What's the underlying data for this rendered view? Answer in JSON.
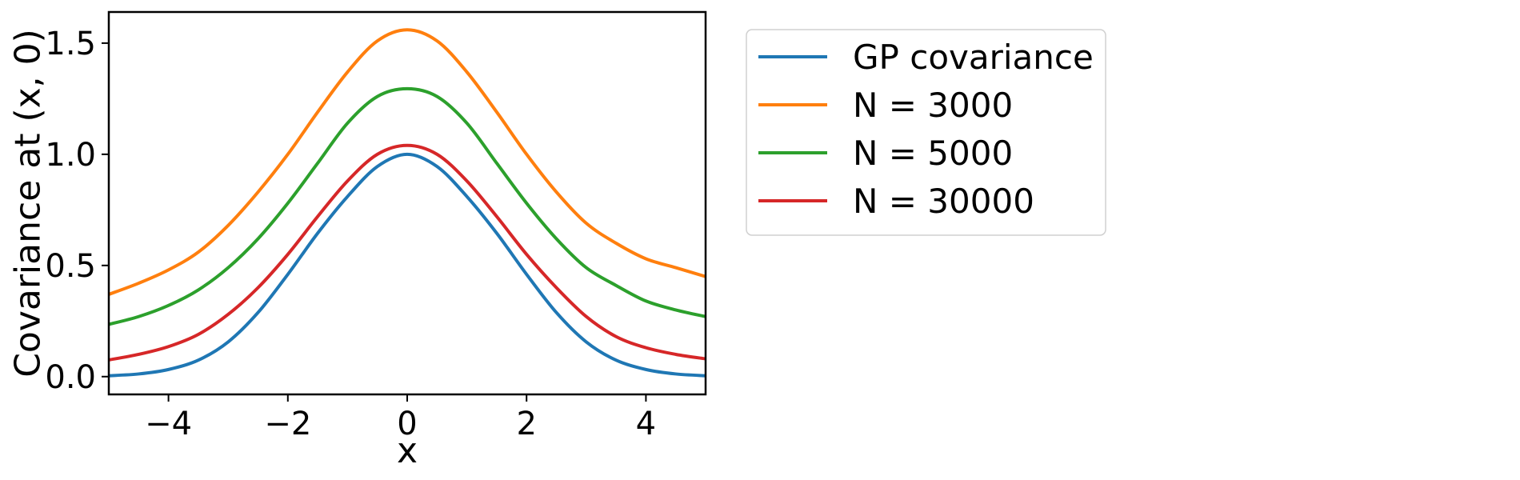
{
  "chart_data": {
    "type": "line",
    "xlabel": "x",
    "ylabel": "Covariance at (x, 0)",
    "xlim": [
      -5,
      5
    ],
    "ylim": [
      -0.08,
      1.64
    ],
    "x_ticks": [
      -4,
      -2,
      0,
      2,
      4
    ],
    "x_tick_labels": [
      "−4",
      "−2",
      "0",
      "2",
      "4"
    ],
    "y_ticks": [
      0.0,
      0.5,
      1.0,
      1.5
    ],
    "y_tick_labels": [
      "0.0",
      "0.5",
      "1.0",
      "1.5"
    ],
    "grid": false,
    "legend_position": "outside-right-top",
    "x": [
      -5,
      -4.5,
      -4,
      -3.5,
      -3,
      -2.5,
      -2,
      -1.5,
      -1,
      -0.5,
      0,
      0.5,
      1,
      1.5,
      2,
      2.5,
      3,
      3.5,
      4,
      4.5,
      5
    ],
    "series": [
      {
        "name": "GP covariance",
        "color": "#1f77b4",
        "values": [
          0.004,
          0.012,
          0.032,
          0.074,
          0.156,
          0.288,
          0.46,
          0.645,
          0.81,
          0.945,
          1.0,
          0.945,
          0.81,
          0.645,
          0.46,
          0.288,
          0.156,
          0.074,
          0.032,
          0.012,
          0.004
        ]
      },
      {
        "name": "N = 3000",
        "color": "#ff7f0e",
        "values": [
          0.37,
          0.42,
          0.48,
          0.56,
          0.68,
          0.83,
          1.0,
          1.19,
          1.37,
          1.51,
          1.56,
          1.51,
          1.37,
          1.19,
          1.0,
          0.83,
          0.69,
          0.6,
          0.53,
          0.49,
          0.45
        ]
      },
      {
        "name": "N = 5000",
        "color": "#2ca02c",
        "values": [
          0.235,
          0.27,
          0.32,
          0.39,
          0.49,
          0.62,
          0.78,
          0.96,
          1.14,
          1.26,
          1.295,
          1.26,
          1.14,
          0.96,
          0.78,
          0.62,
          0.49,
          0.41,
          0.34,
          0.3,
          0.27
        ]
      },
      {
        "name": "N = 30000",
        "color": "#d62728",
        "values": [
          0.075,
          0.1,
          0.135,
          0.19,
          0.28,
          0.4,
          0.55,
          0.72,
          0.88,
          1.0,
          1.04,
          1.0,
          0.88,
          0.72,
          0.55,
          0.4,
          0.27,
          0.18,
          0.13,
          0.1,
          0.08
        ]
      }
    ]
  }
}
